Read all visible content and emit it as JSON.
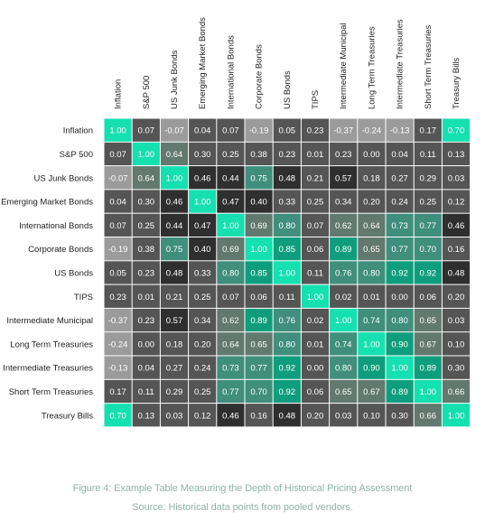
{
  "chart_data": {
    "type": "heatmap",
    "title": "",
    "xlabel": "",
    "ylabel": "",
    "x_categories": [
      "Inflation",
      "S&P 500",
      "US Junk Bonds",
      "Emerging Market Bonds",
      "International Bonds",
      "Corporate Bonds",
      "US Bonds",
      "TIPS",
      "Intermediate Municipal",
      "Long Term Treasuries",
      "Intermediate Treasuries",
      "Short Term Treasuries",
      "Treasury Bills"
    ],
    "y_categories": [
      "Inflation",
      "S&P 500",
      "US Junk Bonds",
      "Emerging Market Bonds",
      "International Bonds",
      "Corporate Bonds",
      "US Bonds",
      "TIPS",
      "Intermediate Municipal",
      "Long Term Treasuries",
      "Intermediate Treasuries",
      "Short Term Treasuries",
      "Treasury Bills"
    ],
    "values": [
      [
        1.0,
        0.07,
        -0.07,
        0.04,
        0.07,
        -0.19,
        0.05,
        0.23,
        -0.37,
        -0.24,
        -0.13,
        0.17,
        0.7
      ],
      [
        0.07,
        1.0,
        0.64,
        0.3,
        0.25,
        0.38,
        0.23,
        0.01,
        0.23,
        0.0,
        0.04,
        0.11,
        0.13
      ],
      [
        -0.07,
        0.64,
        1.0,
        0.46,
        0.44,
        0.75,
        0.48,
        0.21,
        0.57,
        0.18,
        0.27,
        0.29,
        0.03
      ],
      [
        0.04,
        0.3,
        0.46,
        1.0,
        0.47,
        0.4,
        0.33,
        0.25,
        0.34,
        0.2,
        0.24,
        0.25,
        0.12
      ],
      [
        0.07,
        0.25,
        0.44,
        0.47,
        1.0,
        0.69,
        0.8,
        0.07,
        0.62,
        0.64,
        0.73,
        0.77,
        0.46
      ],
      [
        -0.19,
        0.38,
        0.75,
        0.4,
        0.69,
        1.0,
        0.85,
        0.06,
        0.89,
        0.65,
        0.77,
        0.7,
        0.16
      ],
      [
        0.05,
        0.23,
        0.48,
        0.33,
        0.8,
        0.85,
        1.0,
        0.11,
        0.76,
        0.8,
        0.92,
        0.92,
        0.48
      ],
      [
        0.23,
        0.01,
        0.21,
        0.25,
        0.07,
        0.06,
        0.11,
        1.0,
        0.02,
        0.01,
        0.0,
        0.06,
        0.2
      ],
      [
        -0.37,
        0.23,
        0.57,
        0.34,
        0.62,
        0.89,
        0.76,
        0.02,
        1.0,
        0.74,
        0.8,
        0.65,
        0.03
      ],
      [
        -0.24,
        0.0,
        0.18,
        0.2,
        0.64,
        0.65,
        0.8,
        0.01,
        0.74,
        1.0,
        0.9,
        0.67,
        0.1
      ],
      [
        -0.13,
        0.04,
        0.27,
        0.24,
        0.73,
        0.77,
        0.92,
        0.0,
        0.8,
        0.9,
        1.0,
        0.89,
        0.3
      ],
      [
        0.17,
        0.11,
        0.29,
        0.25,
        0.77,
        0.7,
        0.92,
        0.06,
        0.65,
        0.67,
        0.89,
        1.0,
        0.66
      ],
      [
        0.7,
        0.13,
        0.03,
        0.12,
        0.46,
        0.16,
        0.48,
        0.2,
        0.03,
        0.1,
        0.3,
        0.66,
        1.0
      ]
    ],
    "value_format": "2 decimals",
    "grid": false,
    "legend": "none",
    "colors": {
      "highlight": "#14e0b0",
      "strong": "#0f9e7d",
      "mid_teal": "#3f8f7c",
      "gray_teal": "#62796f",
      "dark": "#2f2f2f",
      "neutral": "#555555",
      "light_gray": "#9b9b9b",
      "cell_text": "#ffffff",
      "label_text": "#222222"
    }
  },
  "caption": {
    "title": "Figure 4: Example Table Measuring the Depth of Historical Pricing Assessment",
    "source": "Source: Historical data points from pooled vendors."
  }
}
